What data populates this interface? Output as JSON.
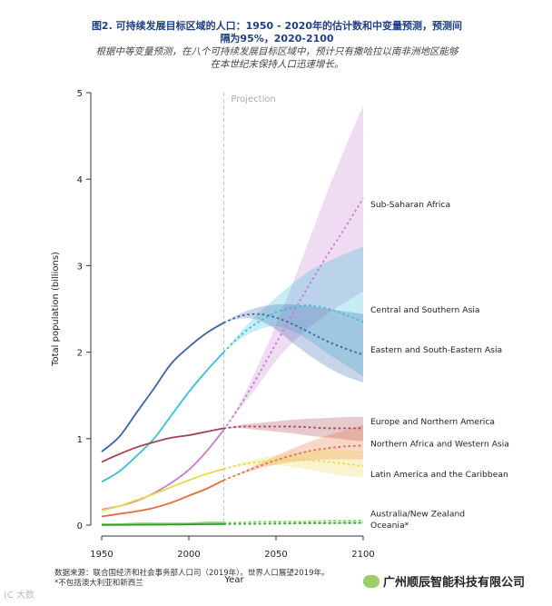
{
  "header": {
    "title_line1": "图2. 可持续发展目标区域的人口：1950 - 2020年的估计数和中变量预测，预测间",
    "title_line2": "隔为95%，2020-2100",
    "subtitle_line1": "根据中等变量预测，在八个可持续发展目标区域中，预计只有撒哈拉以南非洲地区能够",
    "subtitle_line2": "在本世纪末保持人口迅速增长。"
  },
  "footer": {
    "source": "数据来源：联合国经济和社会事务部人口司（2019年）。世界人口展望2019年。",
    "note": "*不包括澳大利亚和新西兰"
  },
  "watermark": {
    "company": "广州顺辰智能科技有限公司",
    "corner": "(C 大数"
  },
  "colors": {
    "ssa": "#c77dd0",
    "csa": "#37c0d9",
    "esea": "#3a63a8",
    "ena": "#a8424d",
    "nawa": "#e66b3a",
    "lac": "#e8d94a",
    "anz": "#8fd06a",
    "oce": "#2aa02a",
    "title": "#1f3f86"
  },
  "chart_data": {
    "type": "line",
    "title": "Population of SDG regions: estimates 1950-2020 and medium-variant projection with 95% prediction intervals, 2020-2100",
    "xlabel": "Year",
    "ylabel": "Total population (billions)",
    "xlim": [
      1950,
      2100
    ],
    "ylim": [
      0,
      5
    ],
    "xticks": [
      1950,
      2000,
      2050,
      2100
    ],
    "yticks": [
      0,
      1,
      2,
      3,
      4,
      5
    ],
    "projection_start": 2020,
    "projection_label": "Projection",
    "x": [
      1950,
      1960,
      1970,
      1980,
      1990,
      2000,
      2010,
      2020,
      2030,
      2040,
      2050,
      2060,
      2070,
      2080,
      2090,
      2100
    ],
    "series": [
      {
        "name": "Sub-Saharan Africa",
        "key": "ssa",
        "values": [
          0.18,
          0.22,
          0.28,
          0.37,
          0.49,
          0.64,
          0.85,
          1.1,
          1.4,
          1.74,
          2.1,
          2.46,
          2.81,
          3.14,
          3.45,
          3.78
        ],
        "lower": [
          null,
          null,
          null,
          null,
          null,
          null,
          null,
          1.1,
          1.36,
          1.62,
          1.9,
          2.12,
          2.3,
          2.45,
          2.58,
          2.7
        ],
        "upper": [
          null,
          null,
          null,
          null,
          null,
          null,
          null,
          1.1,
          1.44,
          1.86,
          2.32,
          2.82,
          3.35,
          3.88,
          4.38,
          4.85
        ]
      },
      {
        "name": "Central and Southern Asia",
        "key": "csa",
        "values": [
          0.5,
          0.62,
          0.8,
          1.0,
          1.27,
          1.54,
          1.78,
          2.0,
          2.2,
          2.35,
          2.46,
          2.52,
          2.54,
          2.5,
          2.43,
          2.35
        ],
        "lower": [
          null,
          null,
          null,
          null,
          null,
          null,
          null,
          2.0,
          2.16,
          2.26,
          2.3,
          2.24,
          2.12,
          1.98,
          1.85,
          1.72
        ],
        "upper": [
          null,
          null,
          null,
          null,
          null,
          null,
          null,
          2.0,
          2.24,
          2.45,
          2.63,
          2.8,
          2.95,
          3.05,
          3.14,
          3.22
        ]
      },
      {
        "name": "Eastern and South-Eastern Asia",
        "key": "esea",
        "values": [
          0.85,
          1.02,
          1.3,
          1.58,
          1.87,
          2.06,
          2.22,
          2.34,
          2.42,
          2.44,
          2.4,
          2.32,
          2.22,
          2.12,
          2.04,
          1.97
        ],
        "lower": [
          null,
          null,
          null,
          null,
          null,
          null,
          null,
          2.34,
          2.39,
          2.37,
          2.26,
          2.1,
          1.95,
          1.82,
          1.72,
          1.65
        ],
        "upper": [
          null,
          null,
          null,
          null,
          null,
          null,
          null,
          2.34,
          2.45,
          2.52,
          2.55,
          2.55,
          2.53,
          2.5,
          2.47,
          2.44
        ]
      },
      {
        "name": "Europe and Northern America",
        "key": "ena",
        "values": [
          0.73,
          0.82,
          0.9,
          0.96,
          1.01,
          1.04,
          1.08,
          1.12,
          1.14,
          1.14,
          1.14,
          1.14,
          1.13,
          1.12,
          1.12,
          1.12
        ],
        "lower": [
          null,
          null,
          null,
          null,
          null,
          null,
          null,
          1.12,
          1.12,
          1.1,
          1.08,
          1.06,
          1.03,
          1.01,
          0.99,
          0.97
        ],
        "upper": [
          null,
          null,
          null,
          null,
          null,
          null,
          null,
          1.12,
          1.16,
          1.18,
          1.2,
          1.22,
          1.23,
          1.24,
          1.25,
          1.25
        ]
      },
      {
        "name": "Northern Africa and Western Asia",
        "key": "nawa",
        "values": [
          0.1,
          0.13,
          0.16,
          0.2,
          0.26,
          0.34,
          0.42,
          0.52,
          0.6,
          0.68,
          0.75,
          0.81,
          0.86,
          0.89,
          0.91,
          0.92
        ],
        "lower": [
          null,
          null,
          null,
          null,
          null,
          null,
          null,
          0.52,
          0.59,
          0.65,
          0.7,
          0.73,
          0.75,
          0.76,
          0.76,
          0.76
        ],
        "upper": [
          null,
          null,
          null,
          null,
          null,
          null,
          null,
          0.52,
          0.61,
          0.71,
          0.8,
          0.89,
          0.97,
          1.04,
          1.1,
          1.16
        ]
      },
      {
        "name": "Latin America and the Caribbean",
        "key": "lac",
        "values": [
          0.17,
          0.22,
          0.29,
          0.36,
          0.44,
          0.52,
          0.59,
          0.65,
          0.7,
          0.73,
          0.75,
          0.76,
          0.75,
          0.73,
          0.71,
          0.68
        ],
        "lower": [
          null,
          null,
          null,
          null,
          null,
          null,
          null,
          0.65,
          0.68,
          0.69,
          0.69,
          0.67,
          0.64,
          0.6,
          0.57,
          0.55
        ],
        "upper": [
          null,
          null,
          null,
          null,
          null,
          null,
          null,
          0.65,
          0.72,
          0.77,
          0.81,
          0.84,
          0.86,
          0.87,
          0.86,
          0.85
        ]
      },
      {
        "name": "Australia/New Zealand",
        "key": "anz",
        "values": [
          0.01,
          0.01,
          0.02,
          0.02,
          0.02,
          0.02,
          0.03,
          0.03,
          0.03,
          0.04,
          0.04,
          0.04,
          0.04,
          0.05,
          0.05,
          0.05
        ],
        "lower": [
          null,
          null,
          null,
          null,
          null,
          null,
          null,
          0.03,
          0.03,
          0.03,
          0.03,
          0.03,
          0.03,
          0.03,
          0.03,
          0.03
        ],
        "upper": [
          null,
          null,
          null,
          null,
          null,
          null,
          null,
          0.03,
          0.04,
          0.04,
          0.05,
          0.05,
          0.06,
          0.06,
          0.06,
          0.07
        ]
      },
      {
        "name": "Oceania*",
        "key": "oce",
        "values": [
          0.002,
          0.003,
          0.004,
          0.005,
          0.006,
          0.008,
          0.01,
          0.012,
          0.014,
          0.016,
          0.018,
          0.02,
          0.022,
          0.023,
          0.024,
          0.025
        ],
        "lower": [
          null,
          null,
          null,
          null,
          null,
          null,
          null,
          0.012,
          0.013,
          0.014,
          0.015,
          0.016,
          0.016,
          0.016,
          0.016,
          0.016
        ],
        "upper": [
          null,
          null,
          null,
          null,
          null,
          null,
          null,
          0.012,
          0.015,
          0.018,
          0.021,
          0.024,
          0.027,
          0.03,
          0.033,
          0.036
        ]
      }
    ],
    "end_labels": [
      {
        "key": "ssa",
        "text": "Sub-Saharan Africa",
        "y": 3.72
      },
      {
        "key": "csa",
        "text": "Central and Southern Asia",
        "y": 2.5
      },
      {
        "key": "esea",
        "text": "Eastern and South-Eastern Asia",
        "y": 2.04
      },
      {
        "key": "ena",
        "text": "Europe and Northern America",
        "y": 1.21
      },
      {
        "key": "nawa",
        "text": "Northern Africa and Western Asia",
        "y": 0.95
      },
      {
        "key": "lac",
        "text": "Latin America and the Caribbean",
        "y": 0.6
      },
      {
        "key": "anz",
        "text": "Australia/New Zealand",
        "y": 0.14
      },
      {
        "key": "oce",
        "text": "Oceania*",
        "y": 0.01
      }
    ]
  }
}
